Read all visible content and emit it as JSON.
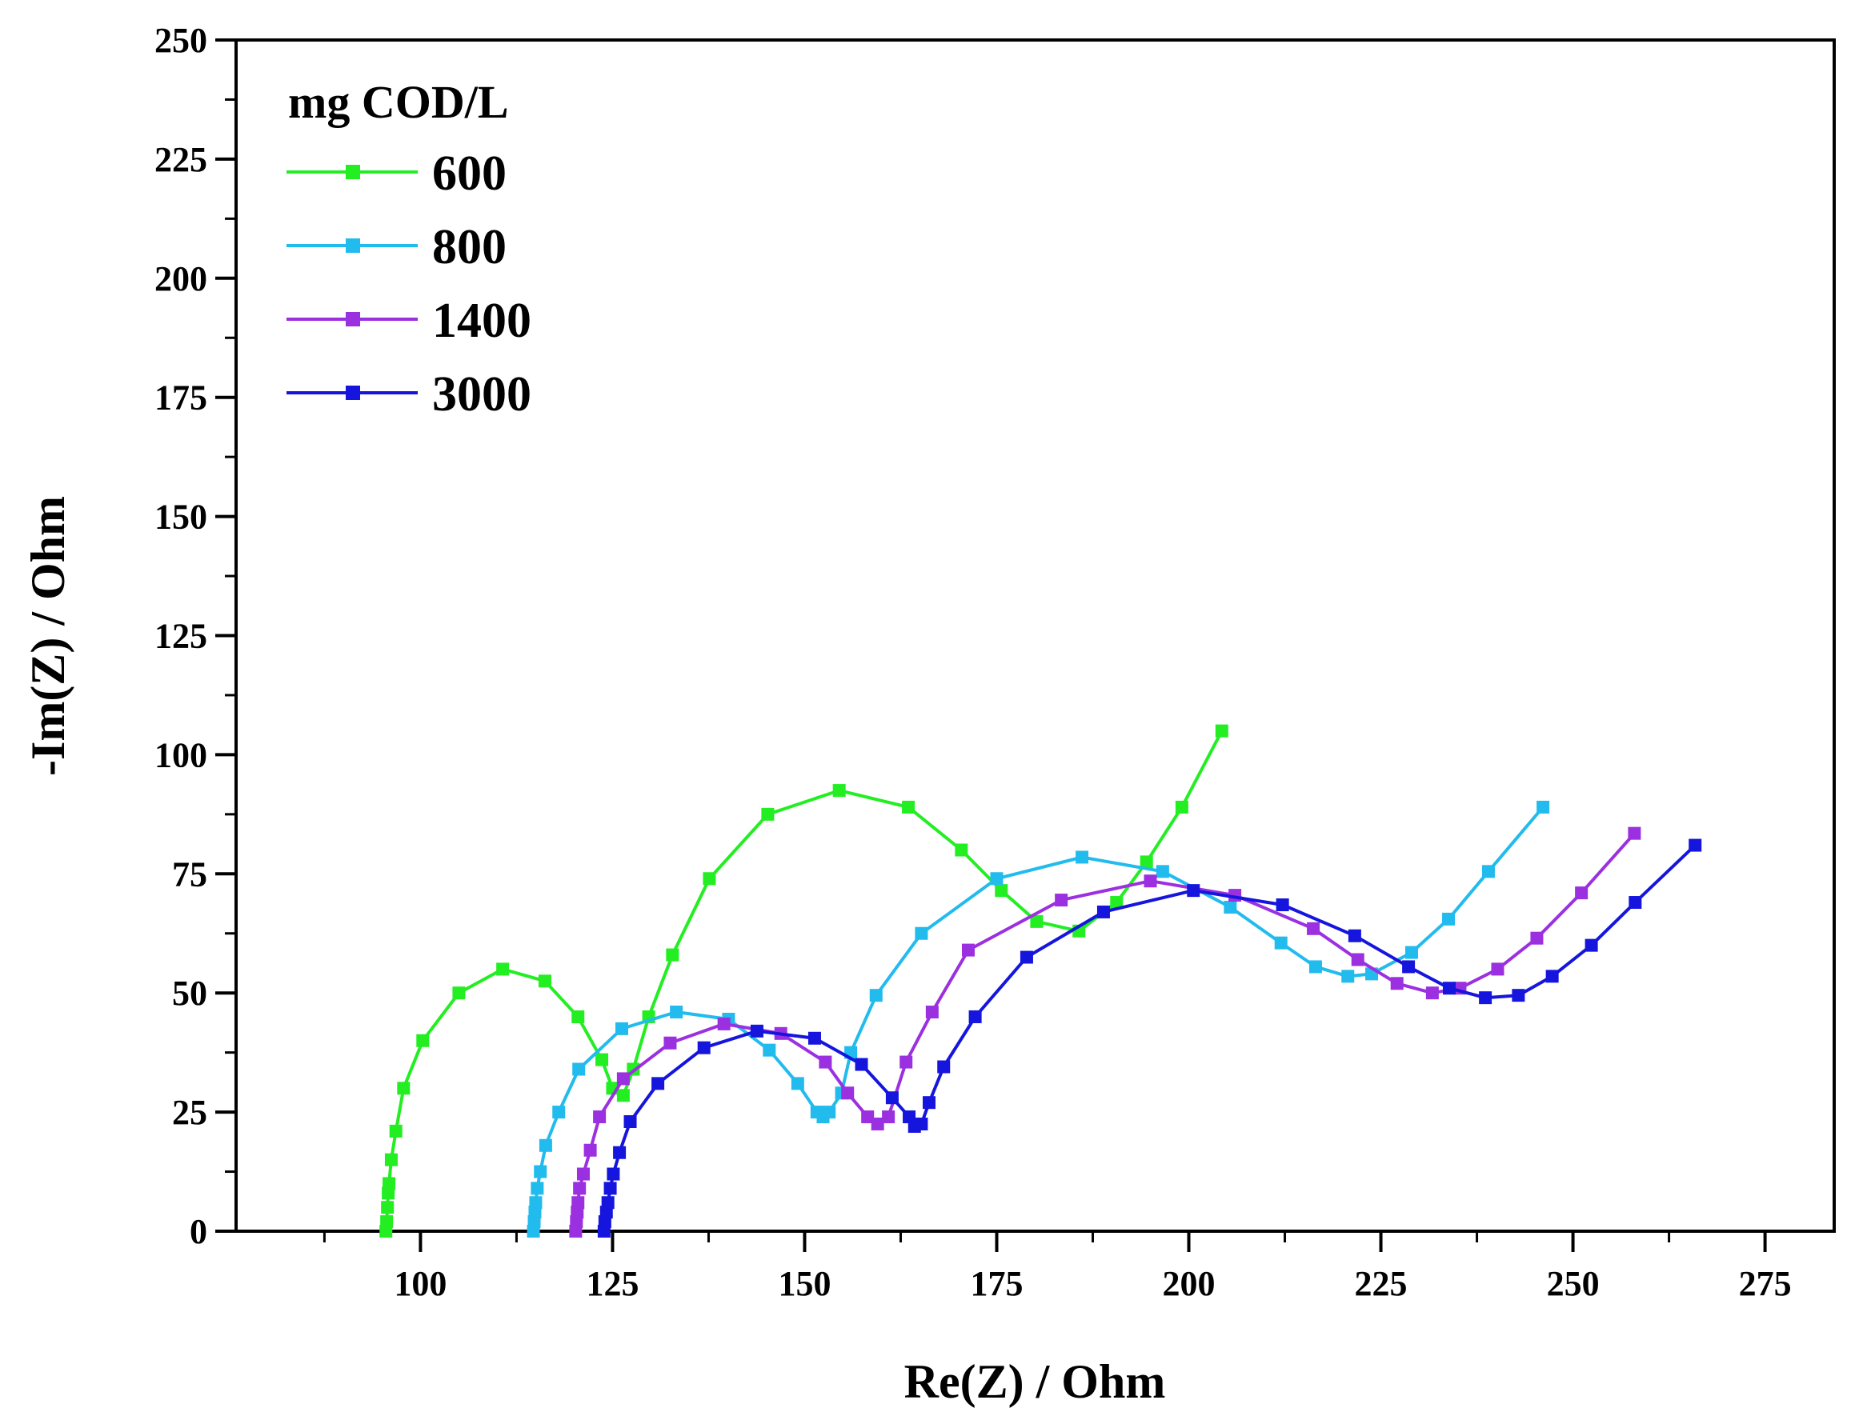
{
  "chart_data": {
    "type": "line",
    "title": "",
    "xlabel": "Re(Z) / Ohm",
    "ylabel": "-Im(Z) / Ohm",
    "xlim": [
      76,
      284
    ],
    "ylim": [
      0,
      250
    ],
    "xticks": [
      100,
      125,
      150,
      175,
      200,
      225,
      250,
      275
    ],
    "yticks": [
      0,
      25,
      50,
      75,
      100,
      125,
      150,
      175,
      200,
      225,
      250
    ],
    "legend": {
      "title": "mg COD/L",
      "position": "top-left"
    },
    "grid": false,
    "series": [
      {
        "name": "600",
        "color": "#22ee22",
        "points": [
          [
            95.5,
            0
          ],
          [
            95.6,
            2
          ],
          [
            95.7,
            5
          ],
          [
            95.8,
            8
          ],
          [
            95.9,
            10
          ],
          [
            96.2,
            15
          ],
          [
            96.8,
            21
          ],
          [
            97.8,
            30
          ],
          [
            100.3,
            40
          ],
          [
            105,
            50
          ],
          [
            110.7,
            55
          ],
          [
            116.2,
            52.5
          ],
          [
            120.5,
            45
          ],
          [
            123.6,
            36
          ],
          [
            125,
            30
          ],
          [
            126.4,
            28.5
          ],
          [
            127.7,
            34
          ],
          [
            129.7,
            45
          ],
          [
            132.8,
            58
          ],
          [
            137.6,
            74
          ],
          [
            145.2,
            87.5
          ],
          [
            154.5,
            92.5
          ],
          [
            163.5,
            89
          ],
          [
            170.4,
            80
          ],
          [
            175.6,
            71.5
          ],
          [
            180.2,
            65
          ],
          [
            185.7,
            63
          ],
          [
            190.6,
            69
          ],
          [
            194.5,
            77.5
          ],
          [
            199.1,
            89
          ],
          [
            204.3,
            105
          ]
        ]
      },
      {
        "name": "800",
        "color": "#22bbee",
        "points": [
          [
            114.7,
            0
          ],
          [
            114.8,
            2
          ],
          [
            114.9,
            4
          ],
          [
            115.0,
            6
          ],
          [
            115.2,
            9
          ],
          [
            115.6,
            12.5
          ],
          [
            116.3,
            18
          ],
          [
            118,
            25
          ],
          [
            120.6,
            34
          ],
          [
            126.2,
            42.5
          ],
          [
            133.3,
            46
          ],
          [
            140.1,
            44.5
          ],
          [
            145.4,
            38
          ],
          [
            149.1,
            31
          ],
          [
            151.6,
            25
          ],
          [
            152.4,
            24
          ],
          [
            153.2,
            25
          ],
          [
            154.8,
            29
          ],
          [
            156,
            37.5
          ],
          [
            159.3,
            49.5
          ],
          [
            165.2,
            62.5
          ],
          [
            175,
            74
          ],
          [
            186.1,
            78.5
          ],
          [
            196.6,
            75.5
          ],
          [
            205.4,
            68
          ],
          [
            212,
            60.5
          ],
          [
            216.5,
            55.5
          ],
          [
            220.7,
            53.5
          ],
          [
            223.8,
            54
          ],
          [
            229,
            58.5
          ],
          [
            233.8,
            65.5
          ],
          [
            239,
            75.5
          ],
          [
            246.1,
            89
          ]
        ]
      },
      {
        "name": "1400",
        "color": "#9b30e0",
        "points": [
          [
            120.2,
            0
          ],
          [
            120.3,
            2
          ],
          [
            120.4,
            4
          ],
          [
            120.5,
            6
          ],
          [
            120.7,
            9
          ],
          [
            121.2,
            12
          ],
          [
            122.1,
            17
          ],
          [
            123.3,
            24
          ],
          [
            126.4,
            32
          ],
          [
            132.5,
            39.5
          ],
          [
            139.5,
            43.5
          ],
          [
            146.9,
            41.5
          ],
          [
            152.7,
            35.5
          ],
          [
            155.6,
            29
          ],
          [
            158.2,
            24
          ],
          [
            159.5,
            22.5
          ],
          [
            160.9,
            24
          ],
          [
            163.2,
            35.5
          ],
          [
            166.6,
            46
          ],
          [
            171.3,
            59
          ],
          [
            183.4,
            69.5
          ],
          [
            195,
            73.5
          ],
          [
            206,
            70.5
          ],
          [
            216.2,
            63.5
          ],
          [
            222,
            57
          ],
          [
            227.1,
            52
          ],
          [
            231.7,
            50
          ],
          [
            235.3,
            51
          ],
          [
            240.2,
            55
          ],
          [
            245.3,
            61.5
          ],
          [
            251.1,
            71
          ],
          [
            258,
            83.5
          ]
        ]
      },
      {
        "name": "3000",
        "color": "#1515dd",
        "points": [
          [
            123.9,
            0
          ],
          [
            124,
            2
          ],
          [
            124.2,
            4
          ],
          [
            124.4,
            6
          ],
          [
            124.7,
            9
          ],
          [
            125.1,
            12
          ],
          [
            125.9,
            16.5
          ],
          [
            127.3,
            23
          ],
          [
            130.9,
            31
          ],
          [
            136.9,
            38.5
          ],
          [
            143.8,
            42
          ],
          [
            151.3,
            40.5
          ],
          [
            157.4,
            35
          ],
          [
            161.4,
            28
          ],
          [
            163.6,
            24
          ],
          [
            164.3,
            22
          ],
          [
            165.2,
            22.5
          ],
          [
            166.2,
            27
          ],
          [
            168.1,
            34.5
          ],
          [
            172.2,
            45
          ],
          [
            178.9,
            57.5
          ],
          [
            188.9,
            67
          ],
          [
            200.6,
            71.5
          ],
          [
            212.2,
            68.5
          ],
          [
            221.6,
            62
          ],
          [
            228.6,
            55.5
          ],
          [
            233.9,
            51
          ],
          [
            238.6,
            49
          ],
          [
            242.9,
            49.5
          ],
          [
            247.3,
            53.5
          ],
          [
            252.4,
            60
          ],
          [
            258.1,
            69
          ],
          [
            265.9,
            81
          ]
        ]
      }
    ]
  }
}
